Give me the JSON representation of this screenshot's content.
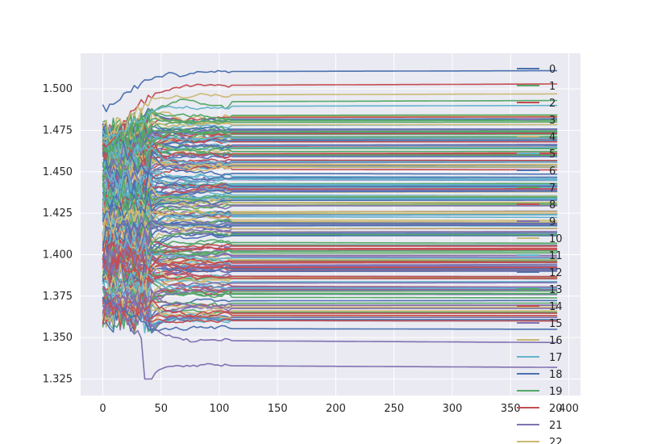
{
  "chart_data": {
    "type": "line",
    "title": "",
    "xlabel": "",
    "ylabel": "",
    "xlim": [
      -19,
      410
    ],
    "ylim": [
      1.315,
      1.5215
    ],
    "x_ticks": [
      0,
      50,
      100,
      150,
      200,
      250,
      300,
      350,
      400
    ],
    "x_tick_labels": [
      "0",
      "50",
      "100",
      "150",
      "200",
      "250",
      "300",
      "350",
      "400"
    ],
    "y_ticks": [
      1.325,
      1.35,
      1.375,
      1.4,
      1.425,
      1.45,
      1.475,
      1.5
    ],
    "y_tick_labels": [
      "1.325",
      "1.350",
      "1.375",
      "1.400",
      "1.425",
      "1.450",
      "1.475",
      "1.500"
    ],
    "grid": true,
    "style": "seaborn-darkgrid",
    "legend_position": "right, overflowing below the axes",
    "legend_labels": [
      "0",
      "1",
      "2",
      "3",
      "4",
      "5",
      "6",
      "7",
      "8",
      "9",
      "10",
      "11",
      "12",
      "13",
      "14",
      "15",
      "16",
      "17",
      "18",
      "19",
      "20",
      "21",
      "22"
    ],
    "palette": [
      "#4c72b0",
      "#55a868",
      "#c44e52",
      "#8172b2",
      "#ccb974",
      "#64b5cd"
    ],
    "x_range": [
      0,
      390
    ],
    "series_count_estimate": 200,
    "highlighted_series": [
      {
        "start": 1.487,
        "peak_x": 60,
        "final": 1.511,
        "color": "#4c72b0"
      },
      {
        "start": 1.465,
        "final": 1.503,
        "color": "#c44e52"
      },
      {
        "start": 1.47,
        "final": 1.497,
        "color": "#ccb974"
      },
      {
        "start": 1.46,
        "final": 1.493,
        "color": "#55a868"
      },
      {
        "start": 1.468,
        "final": 1.49,
        "color": "#64b5cd"
      },
      {
        "start": 1.372,
        "final": 1.36,
        "color": "#c44e52"
      },
      {
        "start": 1.372,
        "final": 1.355,
        "color": "#4c72b0"
      },
      {
        "start": 1.4,
        "final": 1.347,
        "color": "#8172b2"
      },
      {
        "start": 1.38,
        "dip_x": 40,
        "dip": 1.325,
        "final": 1.332,
        "color": "#8172b2"
      }
    ]
  }
}
